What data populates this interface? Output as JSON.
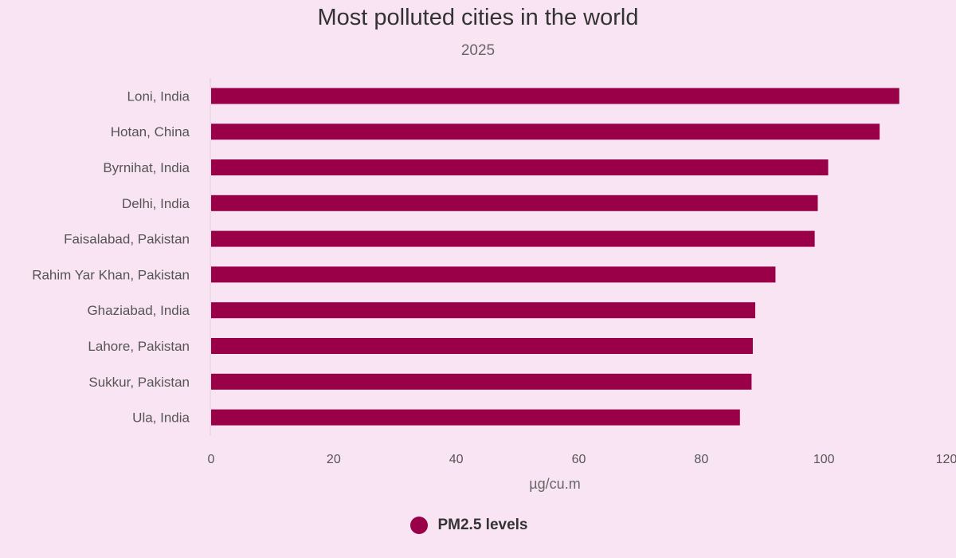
{
  "chart_data": {
    "type": "bar",
    "orientation": "horizontal",
    "title": "Most polluted cities in the world",
    "subtitle": "2025",
    "categories": [
      "Loni, India",
      "Hotan, China",
      "Byrnihat, India",
      "Delhi, India",
      "Faisalabad, Pakistan",
      "Rahim Yar Khan, Pakistan",
      "Ghaziabad, India",
      "Lahore, Pakistan",
      "Sukkur, Pakistan",
      "Ula, India"
    ],
    "series": [
      {
        "name": "PM2.5 levels",
        "values": [
          112.3,
          109.1,
          100.7,
          99.0,
          98.5,
          92.1,
          88.8,
          88.4,
          88.2,
          86.3
        ]
      }
    ],
    "xlabel": "µg/cu.m",
    "ylabel": "",
    "xlim": [
      0,
      120
    ],
    "xticks": [
      "0",
      "20",
      "40",
      "60",
      "80",
      "100",
      "120"
    ],
    "grid": false,
    "legend_position": "bottom-center",
    "bar_color": "#9a0047"
  }
}
